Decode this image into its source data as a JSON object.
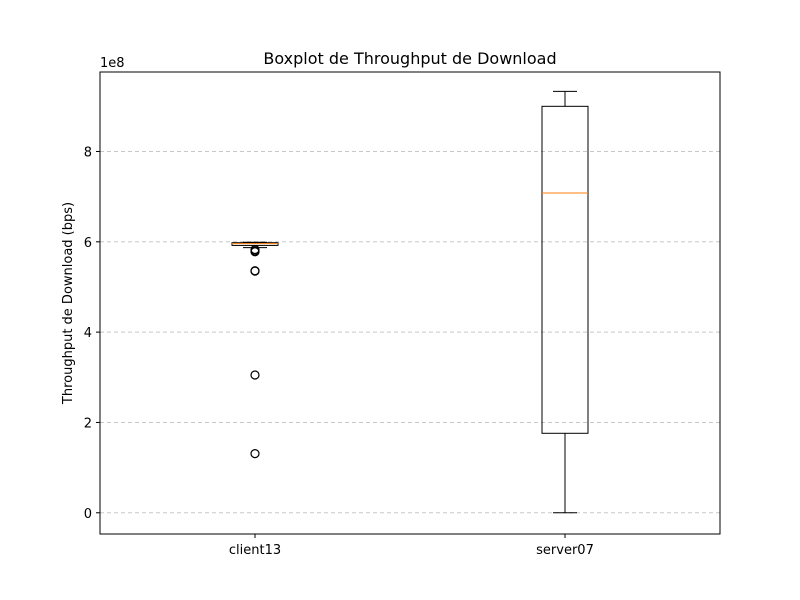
{
  "chart_data": {
    "type": "boxplot",
    "title": "Boxplot de Throughput de Download",
    "xlabel": "",
    "ylabel": "Throughput de Download (bps)",
    "y_offset_label": "1e8",
    "y_scale": 100000000,
    "ylim": [
      -0.47,
      9.76
    ],
    "yticks": [
      0,
      2,
      4,
      6,
      8
    ],
    "grid": {
      "axis": "y",
      "style": "dashed",
      "color": "#c8c8c8"
    },
    "categories": [
      "client13",
      "server07"
    ],
    "boxes": [
      {
        "name": "client13",
        "whisker_low": 5.87,
        "q1": 5.92,
        "median": 5.96,
        "q3": 5.98,
        "whisker_high": 5.99,
        "outliers": [
          5.8,
          5.78,
          5.83,
          5.36,
          5.35,
          3.05,
          1.31
        ]
      },
      {
        "name": "server07",
        "whisker_low": 0.0,
        "q1": 1.76,
        "median": 7.08,
        "q3": 9.0,
        "whisker_high": 9.33,
        "outliers": []
      }
    ],
    "colors": {
      "box": "#000000",
      "median": "#ff7f0e",
      "grid": "#c8c8c8",
      "flier": "#000000"
    }
  }
}
